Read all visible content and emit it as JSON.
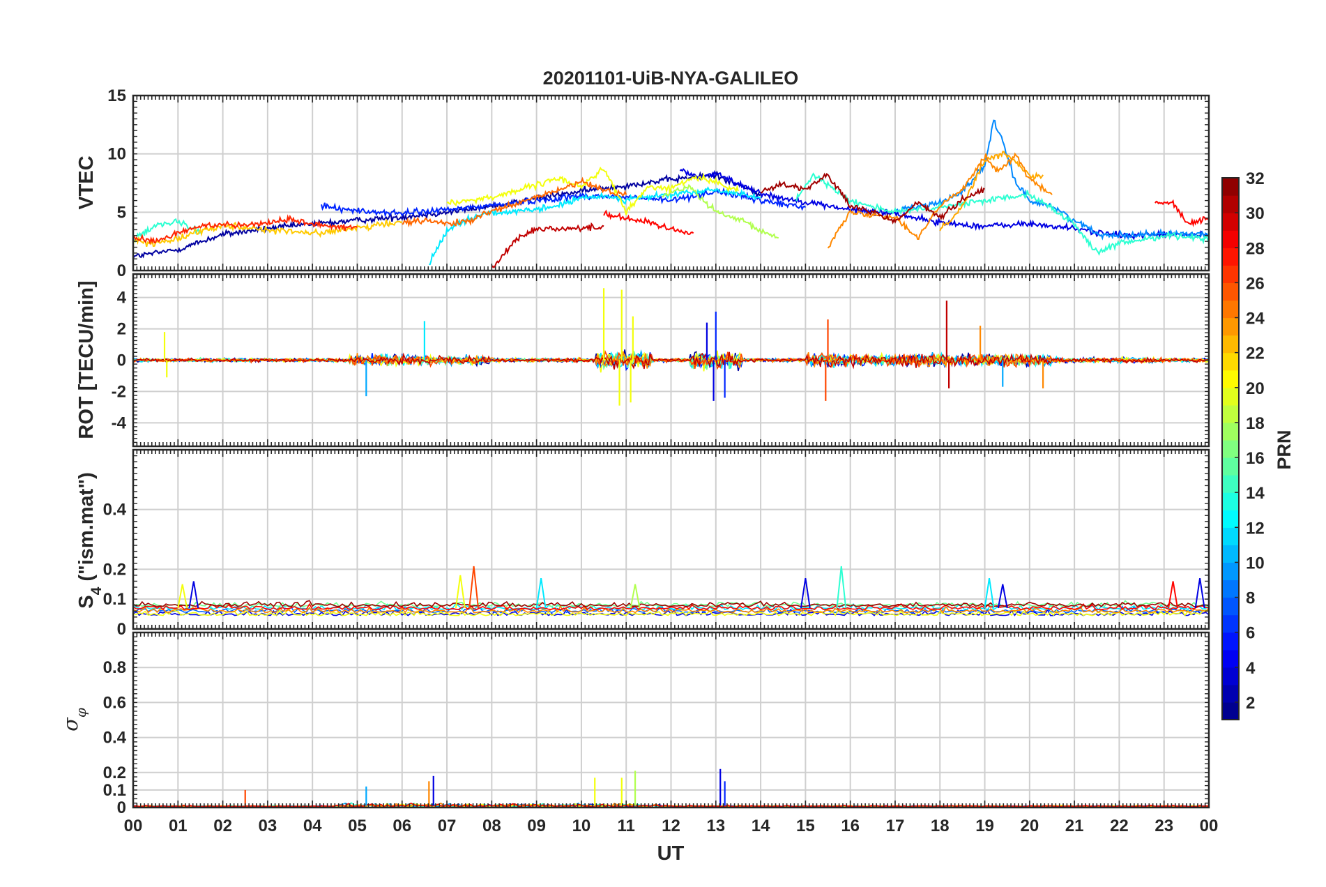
{
  "figure": {
    "title": "20201101-UiB-NYA-GALILEO",
    "xlabel": "UT",
    "x_tick_labels": [
      "00",
      "01",
      "02",
      "03",
      "04",
      "05",
      "06",
      "07",
      "08",
      "09",
      "10",
      "11",
      "12",
      "13",
      "14",
      "15",
      "16",
      "17",
      "18",
      "19",
      "20",
      "21",
      "22",
      "23",
      "00"
    ]
  },
  "colorbar": {
    "label": "PRN",
    "range": [
      1,
      32
    ],
    "tick_labels": [
      "2",
      "4",
      "6",
      "8",
      "10",
      "12",
      "14",
      "16",
      "18",
      "20",
      "22",
      "24",
      "26",
      "28",
      "30",
      "32"
    ],
    "colormap": "jet"
  },
  "chart_data": [
    {
      "type": "line",
      "panel": "vtec",
      "ylabel": "VTEC",
      "ylim": [
        0,
        15
      ],
      "xlim": [
        0,
        24
      ],
      "grid": true,
      "ytick_labels": [
        "0",
        "5",
        "10",
        "15"
      ],
      "series_note": "one trace per Galileo PRN, coloured by PRN",
      "series": [
        {
          "prn": 2,
          "x": [
            0,
            1,
            2,
            3,
            4,
            5,
            6,
            7,
            8,
            9,
            10,
            11,
            12,
            13,
            14
          ],
          "y": [
            1.2,
            1.8,
            3.1,
            3.6,
            4.0,
            4.3,
            4.6,
            5.0,
            5.5,
            6.2,
            6.8,
            7.3,
            7.8,
            8.2,
            6.5
          ]
        },
        {
          "prn": 4,
          "x": [
            12.2,
            12.6,
            13,
            13.4,
            13.8,
            14.2,
            15,
            16,
            17,
            18,
            19,
            20,
            21,
            22,
            23,
            24
          ],
          "y": [
            8.6,
            8.0,
            8.3,
            7.6,
            7.0,
            6.4,
            5.9,
            5.2,
            4.9,
            4.1,
            3.8,
            4.0,
            3.6,
            3.0,
            3.1,
            3.0
          ]
        },
        {
          "prn": 6,
          "x": [
            4.2,
            5,
            6,
            7,
            8,
            9,
            10,
            11,
            12,
            13,
            14,
            15
          ],
          "y": [
            5.6,
            5.1,
            4.9,
            5.2,
            5.6,
            6.0,
            6.4,
            6.3,
            6.0,
            6.8,
            6.0,
            5.4
          ]
        },
        {
          "prn": 9,
          "x": [
            17,
            18,
            18.5,
            19,
            19.2,
            19.4,
            19.7,
            20,
            20.5,
            21,
            21.5,
            22,
            23,
            24
          ],
          "y": [
            5.2,
            5.8,
            6.8,
            9.0,
            12.8,
            11.0,
            7.5,
            6.0,
            5.5,
            4.3,
            3.2,
            3.0,
            3.2,
            3.1
          ]
        },
        {
          "prn": 12,
          "x": [
            6.6,
            7,
            7.5,
            8,
            8.5,
            9,
            9.5,
            10,
            10.5,
            11,
            12,
            13,
            14
          ],
          "y": [
            0.5,
            3.5,
            4.5,
            5.0,
            5.0,
            5.2,
            5.6,
            6.2,
            6.4,
            6.1,
            6.5,
            6.9,
            6.3
          ]
        },
        {
          "prn": 14,
          "x": [
            0,
            0.5,
            1,
            1.5
          ],
          "y": [
            2.6,
            3.8,
            4.2,
            3.2
          ]
        },
        {
          "prn": 14,
          "x": [
            14.8,
            15.2,
            15.5,
            16,
            17,
            18,
            19,
            20,
            21,
            21.5,
            22,
            23,
            24
          ],
          "y": [
            6.2,
            8.2,
            7.4,
            6.0,
            5.0,
            5.4,
            6.0,
            6.6,
            4.0,
            1.5,
            2.3,
            3.0,
            2.8
          ]
        },
        {
          "prn": 18,
          "x": [
            11.8,
            12.4,
            13,
            13.6,
            14,
            14.4
          ],
          "y": [
            6.4,
            7.2,
            5.0,
            4.2,
            3.4,
            2.8
          ]
        },
        {
          "prn": 20,
          "x": [
            7,
            7.5,
            8,
            8.5,
            9,
            9.5,
            10,
            10.5,
            11,
            11.5,
            12,
            12.5,
            13,
            13.5
          ],
          "y": [
            5.8,
            6.0,
            6.3,
            6.8,
            7.3,
            7.9,
            7.2,
            8.8,
            5.0,
            7.2,
            7.0,
            8.0,
            7.6,
            6.8
          ]
        },
        {
          "prn": 22,
          "x": [
            0,
            0.5,
            1,
            1.5,
            2,
            3,
            4,
            5,
            6
          ],
          "y": [
            2.6,
            2.3,
            2.8,
            3.4,
            3.9,
            3.5,
            3.2,
            3.6,
            4.2
          ]
        },
        {
          "prn": 23,
          "x": [
            18,
            18.5,
            19,
            19.5,
            20,
            20.3
          ],
          "y": [
            3.5,
            5.5,
            9.5,
            10.0,
            8.2,
            8.2
          ]
        },
        {
          "prn": 24,
          "x": [
            15.5,
            16,
            17,
            17.5,
            18,
            18.5,
            19,
            19.3,
            19.7,
            20,
            20.5
          ],
          "y": [
            2.0,
            5.0,
            4.6,
            2.8,
            5.5,
            7.0,
            9.8,
            8.5,
            9.9,
            7.8,
            6.5
          ]
        },
        {
          "prn": 25,
          "x": [
            6,
            6.5,
            7,
            7.5,
            8,
            8.5,
            9,
            9.5,
            10,
            10.5,
            11
          ],
          "y": [
            4.0,
            4.3,
            4.0,
            4.2,
            5.1,
            5.6,
            6.3,
            6.9,
            7.6,
            6.9,
            6.5
          ]
        },
        {
          "prn": 27,
          "x": [
            0,
            0.5,
            1,
            1.5,
            2,
            2.5,
            3,
            3.5,
            4,
            4.5,
            5
          ],
          "y": [
            2.8,
            2.5,
            3.2,
            3.8,
            4.0,
            3.9,
            4.1,
            4.4,
            4.0,
            3.8,
            3.7
          ]
        },
        {
          "prn": 28,
          "x": [
            10.5,
            11,
            11.5,
            12,
            12.5
          ],
          "y": [
            4.9,
            4.5,
            4.1,
            3.6,
            3.2
          ]
        },
        {
          "prn": 28,
          "x": [
            22.8,
            23,
            23.2,
            23.5,
            24
          ],
          "y": [
            5.8,
            5.8,
            5.9,
            4.0,
            4.5
          ]
        },
        {
          "prn": 30,
          "x": [
            8,
            8.2,
            8.5,
            9,
            9.5,
            10,
            10.5
          ],
          "y": [
            0.2,
            1.0,
            2.6,
            3.6,
            3.6,
            3.6,
            3.8
          ]
        },
        {
          "prn": 31,
          "x": [
            14,
            14.5,
            15,
            15.5,
            16,
            16.5,
            17,
            17.5,
            18,
            18.5,
            19
          ],
          "y": [
            6.8,
            7.4,
            7.0,
            8.2,
            5.5,
            5.0,
            4.2,
            5.8,
            4.6,
            6.0,
            7.0
          ]
        }
      ]
    },
    {
      "type": "line",
      "panel": "rot",
      "ylabel": "ROT [TECU/min]",
      "ylim": [
        -5.5,
        5.5
      ],
      "xlim": [
        0,
        24
      ],
      "grid": true,
      "ytick_labels": [
        "-4",
        "-2",
        "0",
        "2",
        "4"
      ],
      "series_note": "high-rate ROT traces around zero for all PRNs; notable spikes listed",
      "spikes": [
        {
          "x": 0.7,
          "y": 1.8,
          "prn": 20
        },
        {
          "x": 0.75,
          "y": -1.1,
          "prn": 20
        },
        {
          "x": 5.2,
          "y": -2.3,
          "prn": 10
        },
        {
          "x": 6.5,
          "y": 2.5,
          "prn": 12
        },
        {
          "x": 10.5,
          "y": 4.6,
          "prn": 20
        },
        {
          "x": 10.85,
          "y": -2.9,
          "prn": 20
        },
        {
          "x": 10.9,
          "y": 4.5,
          "prn": 20
        },
        {
          "x": 11.1,
          "y": -2.7,
          "prn": 20
        },
        {
          "x": 11.15,
          "y": 2.8,
          "prn": 20
        },
        {
          "x": 12.8,
          "y": 2.4,
          "prn": 4
        },
        {
          "x": 12.95,
          "y": -2.6,
          "prn": 4
        },
        {
          "x": 13.0,
          "y": 3.1,
          "prn": 6
        },
        {
          "x": 13.2,
          "y": -2.4,
          "prn": 6
        },
        {
          "x": 15.5,
          "y": 2.6,
          "prn": 26
        },
        {
          "x": 15.45,
          "y": -2.6,
          "prn": 26
        },
        {
          "x": 18.15,
          "y": 3.8,
          "prn": 30
        },
        {
          "x": 18.2,
          "y": -1.8,
          "prn": 30
        },
        {
          "x": 18.9,
          "y": 2.2,
          "prn": 24
        },
        {
          "x": 19.4,
          "y": -1.7,
          "prn": 10
        },
        {
          "x": 20.3,
          "y": -1.8,
          "prn": 24
        }
      ]
    },
    {
      "type": "line",
      "panel": "s4",
      "ylabel": "S4 (\"ism.mat\")",
      "ylim": [
        0,
        0.6
      ],
      "xlim": [
        0,
        24
      ],
      "grid": true,
      "ytick_labels": [
        "0",
        "0.1",
        "0.2",
        "0.4"
      ],
      "series_note": "S4 traces mostly 0.03-0.1 for all PRNs; peaks listed",
      "peaks": [
        {
          "x": 1.1,
          "y": 0.15,
          "prn": 20
        },
        {
          "x": 1.35,
          "y": 0.16,
          "prn": 4
        },
        {
          "x": 7.6,
          "y": 0.21,
          "prn": 26
        },
        {
          "x": 7.3,
          "y": 0.18,
          "prn": 20
        },
        {
          "x": 9.1,
          "y": 0.17,
          "prn": 12
        },
        {
          "x": 11.2,
          "y": 0.15,
          "prn": 18
        },
        {
          "x": 15.0,
          "y": 0.17,
          "prn": 4
        },
        {
          "x": 15.8,
          "y": 0.21,
          "prn": 14
        },
        {
          "x": 19.1,
          "y": 0.17,
          "prn": 12
        },
        {
          "x": 19.4,
          "y": 0.15,
          "prn": 4
        },
        {
          "x": 23.2,
          "y": 0.16,
          "prn": 28
        },
        {
          "x": 23.8,
          "y": 0.17,
          "prn": 4
        }
      ]
    },
    {
      "type": "line",
      "panel": "sigma_phi",
      "ylabel": "σφ",
      "ylim": [
        0,
        1
      ],
      "xlim": [
        0,
        24
      ],
      "grid": true,
      "ytick_labels": [
        "0",
        "0.1",
        "0.2",
        "0.4",
        "0.6",
        "0.8"
      ],
      "series_note": "sigma-phi traces mostly below 0.05; peaks listed",
      "peaks": [
        {
          "x": 2.5,
          "y": 0.1,
          "prn": 26
        },
        {
          "x": 5.2,
          "y": 0.12,
          "prn": 10
        },
        {
          "x": 6.6,
          "y": 0.15,
          "prn": 24
        },
        {
          "x": 6.7,
          "y": 0.18,
          "prn": 4
        },
        {
          "x": 10.3,
          "y": 0.17,
          "prn": 20
        },
        {
          "x": 10.9,
          "y": 0.17,
          "prn": 20
        },
        {
          "x": 11.2,
          "y": 0.21,
          "prn": 18
        },
        {
          "x": 13.1,
          "y": 0.22,
          "prn": 4
        },
        {
          "x": 13.2,
          "y": 0.15,
          "prn": 6
        }
      ]
    }
  ]
}
